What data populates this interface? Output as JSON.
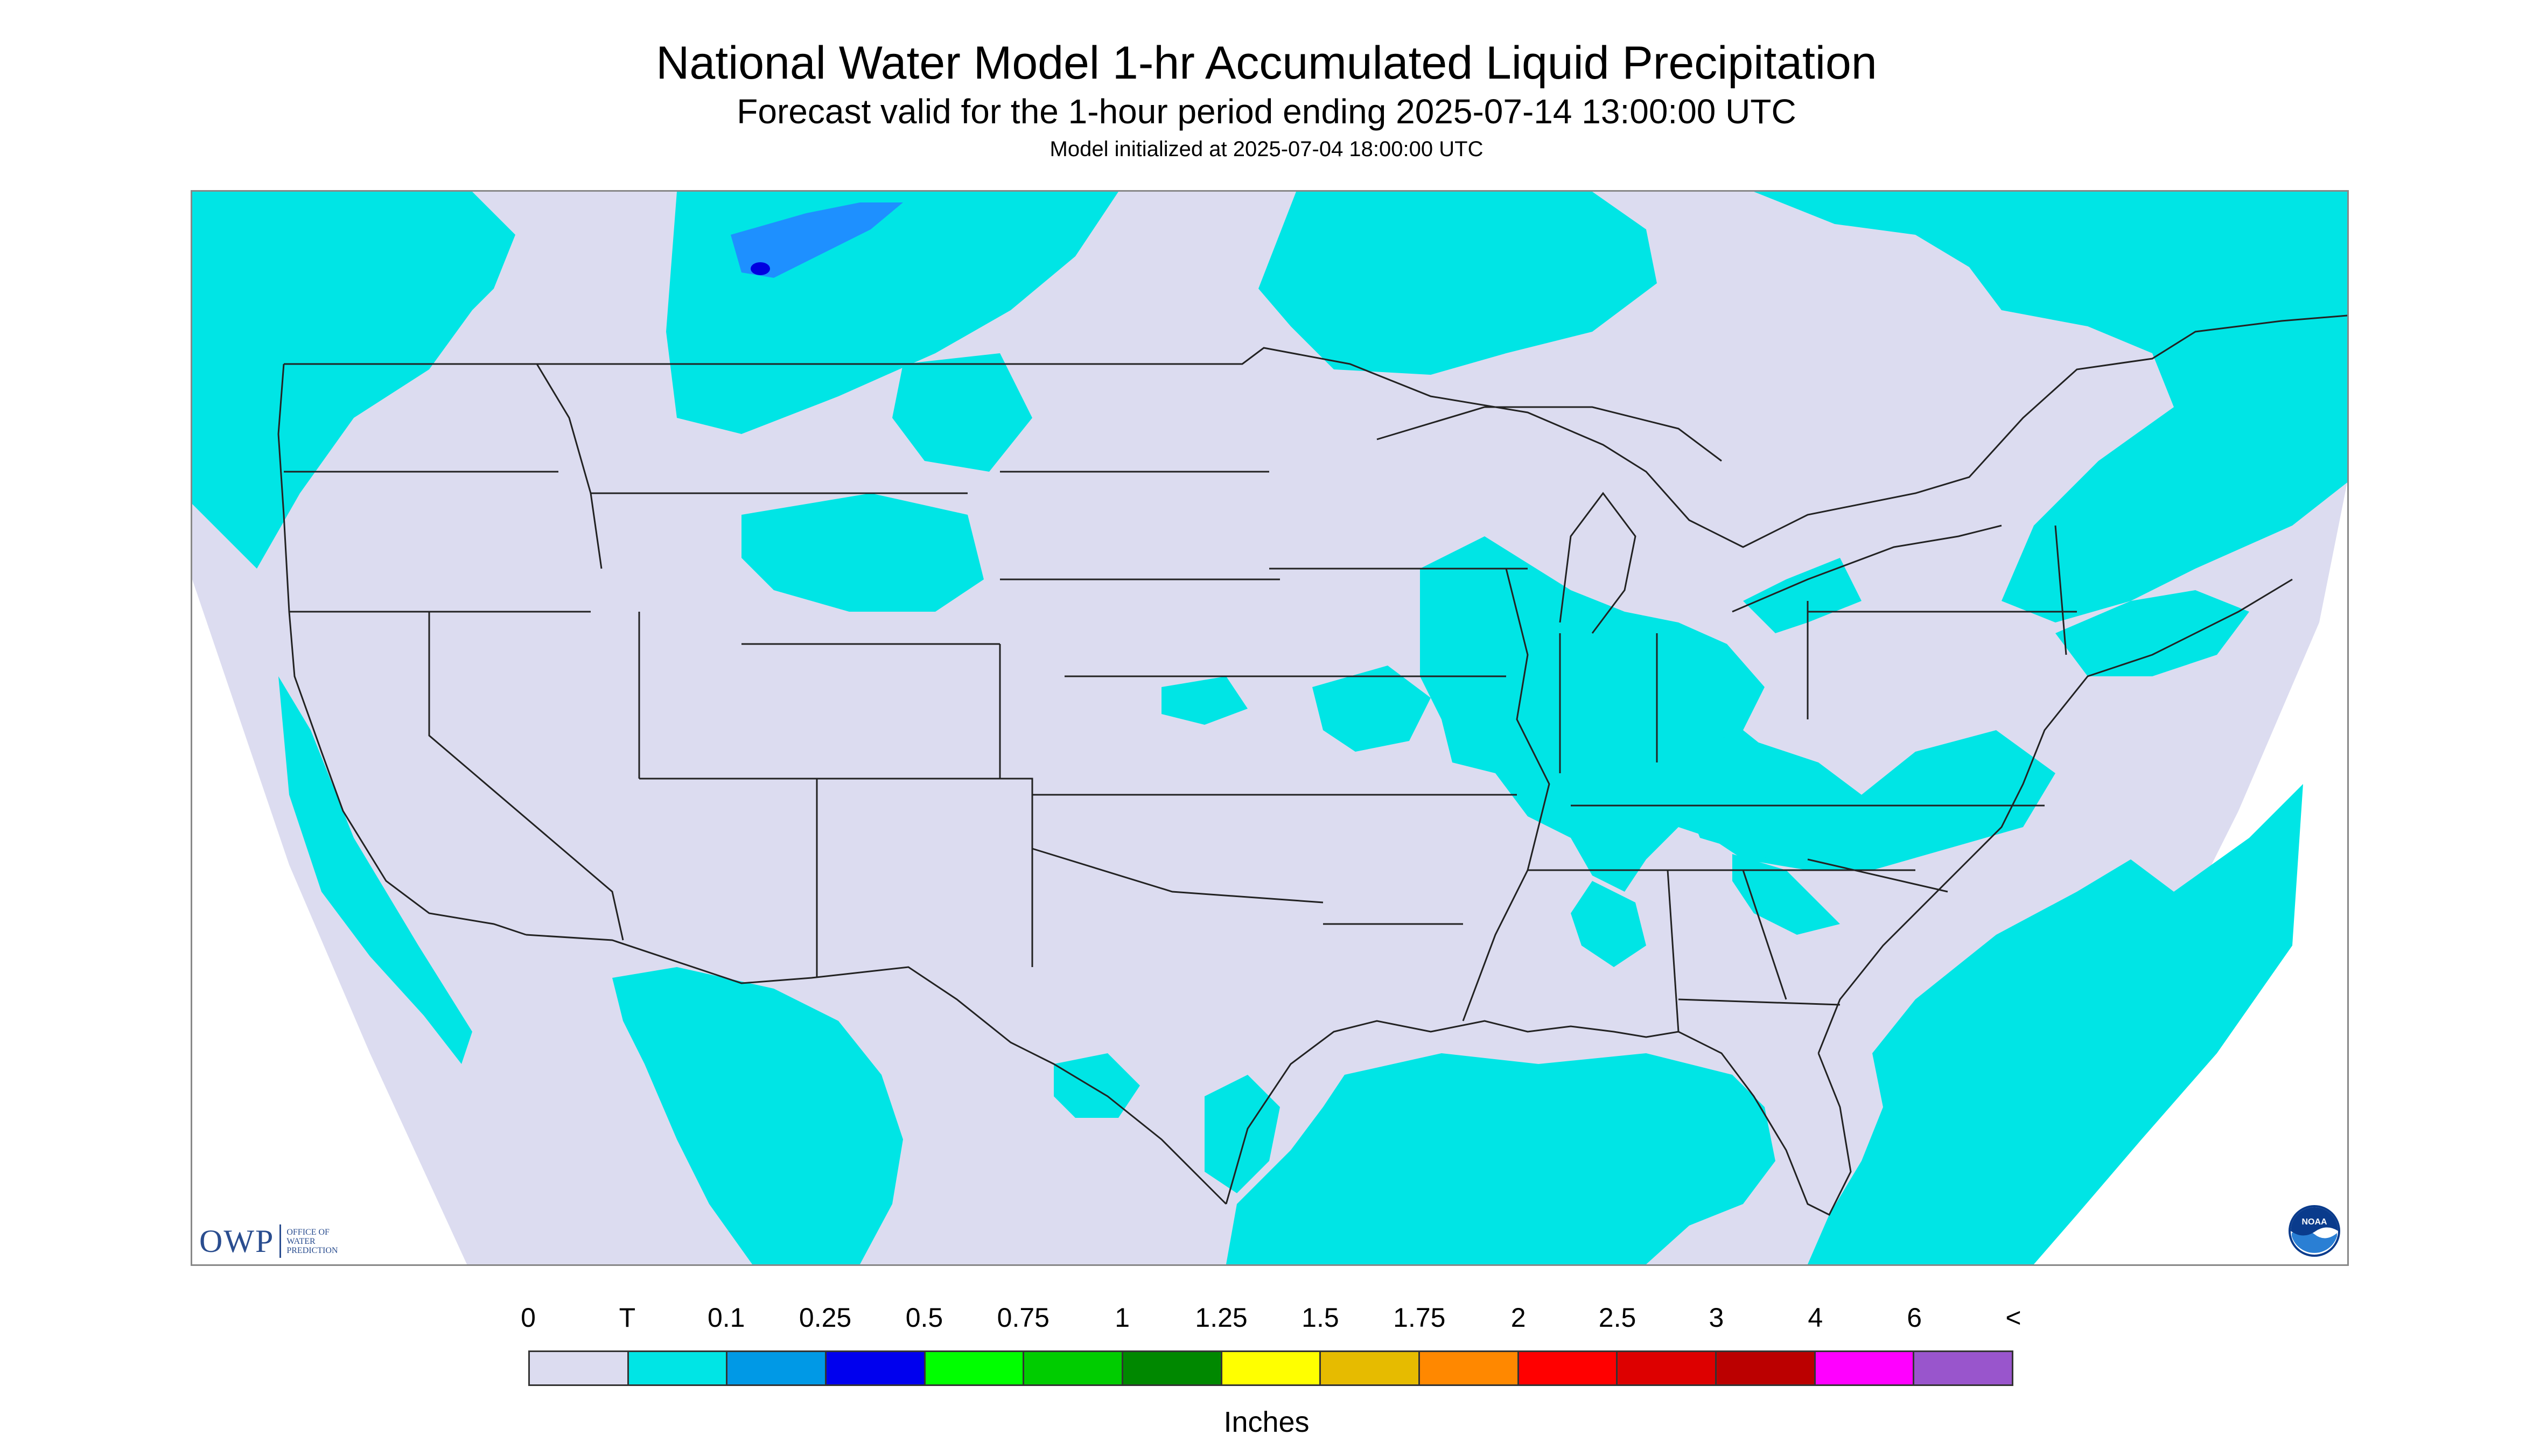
{
  "header": {
    "title": "National Water Model 1-hr Accumulated Liquid Precipitation",
    "subtitle": "Forecast valid for the 1-hour period ending 2025-07-14 13:00:00 UTC",
    "init": "Model initialized at 2025-07-04 18:00:00 UTC"
  },
  "map": {
    "background_color": "#dcdcf0",
    "offgrid_color": "#ffffff",
    "trace_color": "#00e5e5",
    "light_blue_color": "#1e90ff",
    "dark_blue_color": "#0000e0",
    "boundary_color": "#222222"
  },
  "logos": {
    "owp_text": "OWP",
    "owp_subtitle": [
      "OFFICE OF",
      "WATER",
      "PREDICTION"
    ],
    "noaa_text": "NOAA"
  },
  "legend": {
    "ticks": [
      "0",
      "T",
      "0.1",
      "0.25",
      "0.5",
      "0.75",
      "1",
      "1.25",
      "1.5",
      "1.75",
      "2",
      "2.5",
      "3",
      "4",
      "6",
      "<"
    ],
    "colors": [
      "#dcdcf0",
      "#00e5e5",
      "#0099e6",
      "#0000ee",
      "#00ff00",
      "#00cc00",
      "#008800",
      "#ffff00",
      "#e6bb00",
      "#ff8800",
      "#ff0000",
      "#dd0000",
      "#bb0000",
      "#ff00ff",
      "#9955cc"
    ],
    "units": "Inches"
  }
}
